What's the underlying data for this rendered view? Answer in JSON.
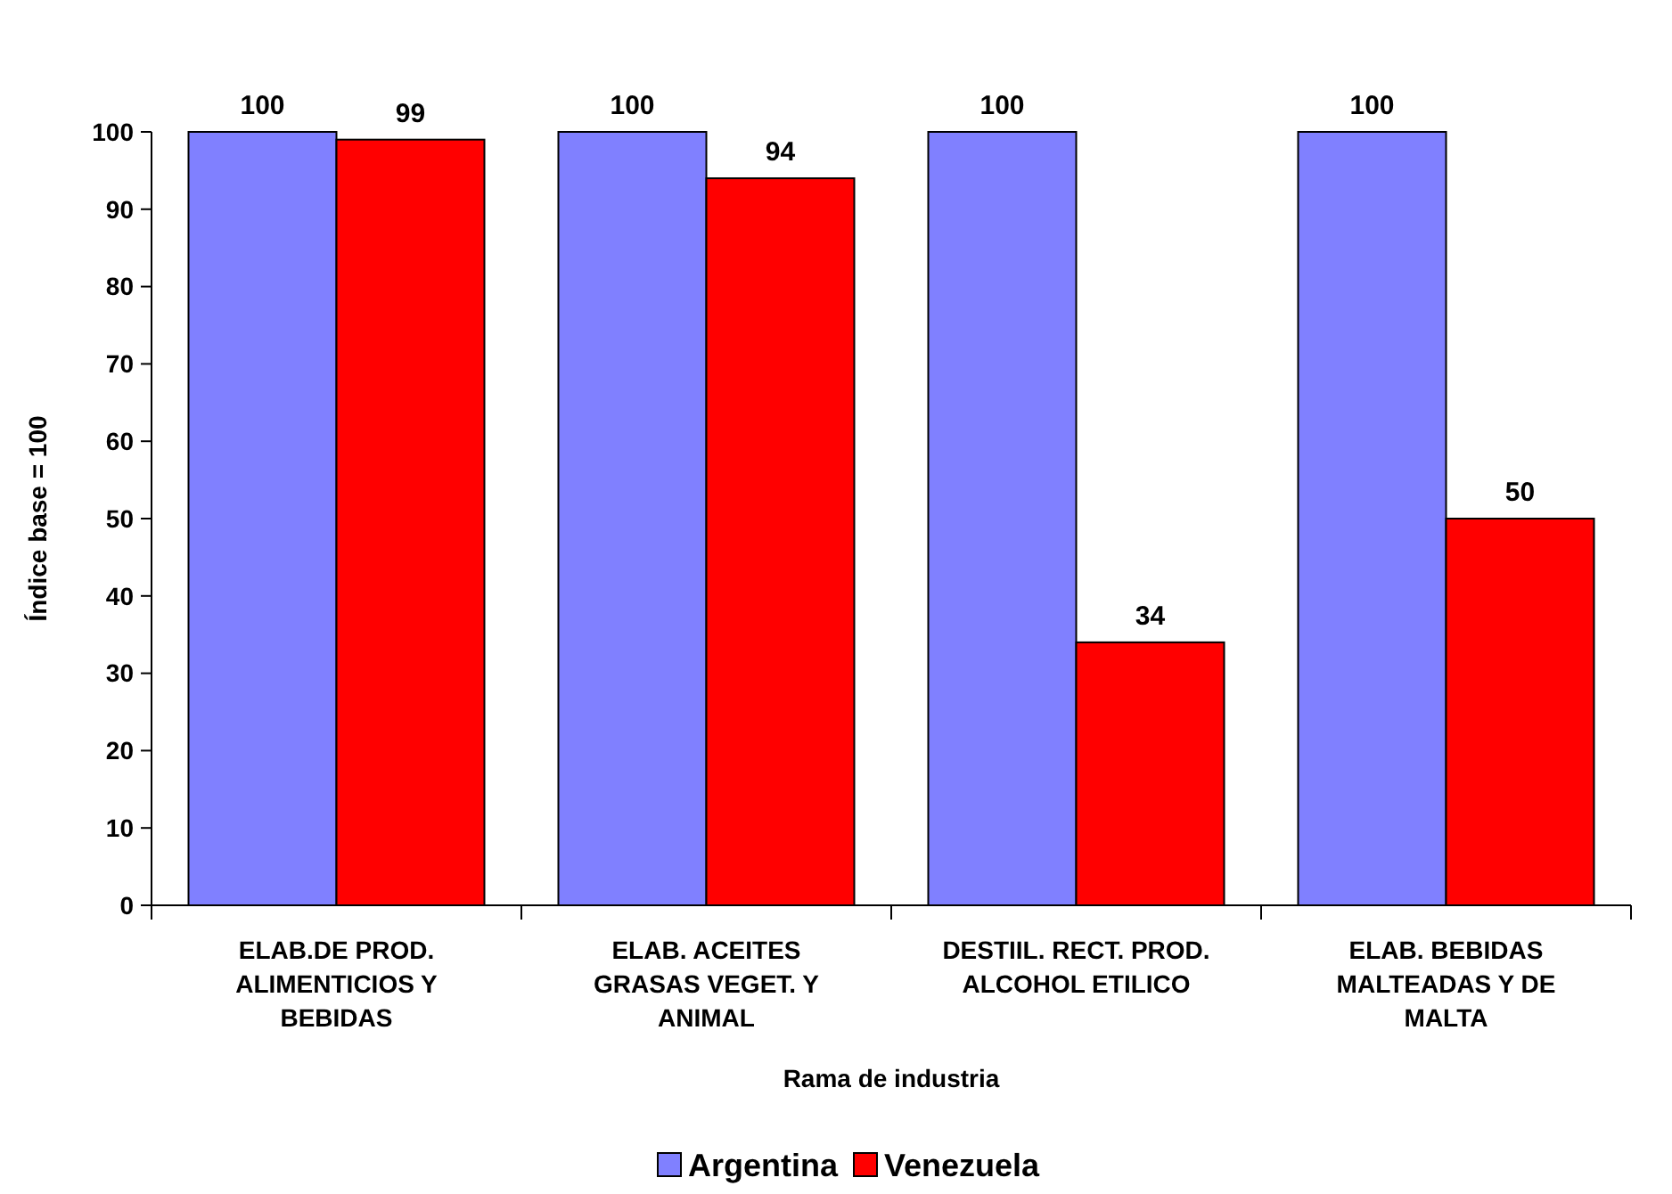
{
  "chart_data": {
    "type": "bar",
    "xlabel": "Rama de industria",
    "ylabel": "Índice base = 100",
    "categories": [
      "ELAB.DE PROD.\nALIMENTICIOS Y\nBEBIDAS",
      "ELAB. ACEITES\nGRASAS VEGET. Y\nANIMAL",
      "DESTIIL. RECT. PROD.\nALCOHOL ETILICO",
      "ELAB. BEBIDAS\nMALTEADAS Y DE\nMALTA"
    ],
    "series": [
      {
        "name": "Argentina",
        "color": "#8080ff",
        "values": [
          100,
          100,
          100,
          100
        ]
      },
      {
        "name": "Venezuela",
        "color": "#ff0000",
        "values": [
          99,
          94,
          34,
          50
        ]
      }
    ],
    "ylim": [
      0,
      100
    ],
    "yticks": [
      0,
      10,
      20,
      30,
      40,
      50,
      60,
      70,
      80,
      90,
      100
    ],
    "data_labels": true,
    "legend": "bottom"
  }
}
